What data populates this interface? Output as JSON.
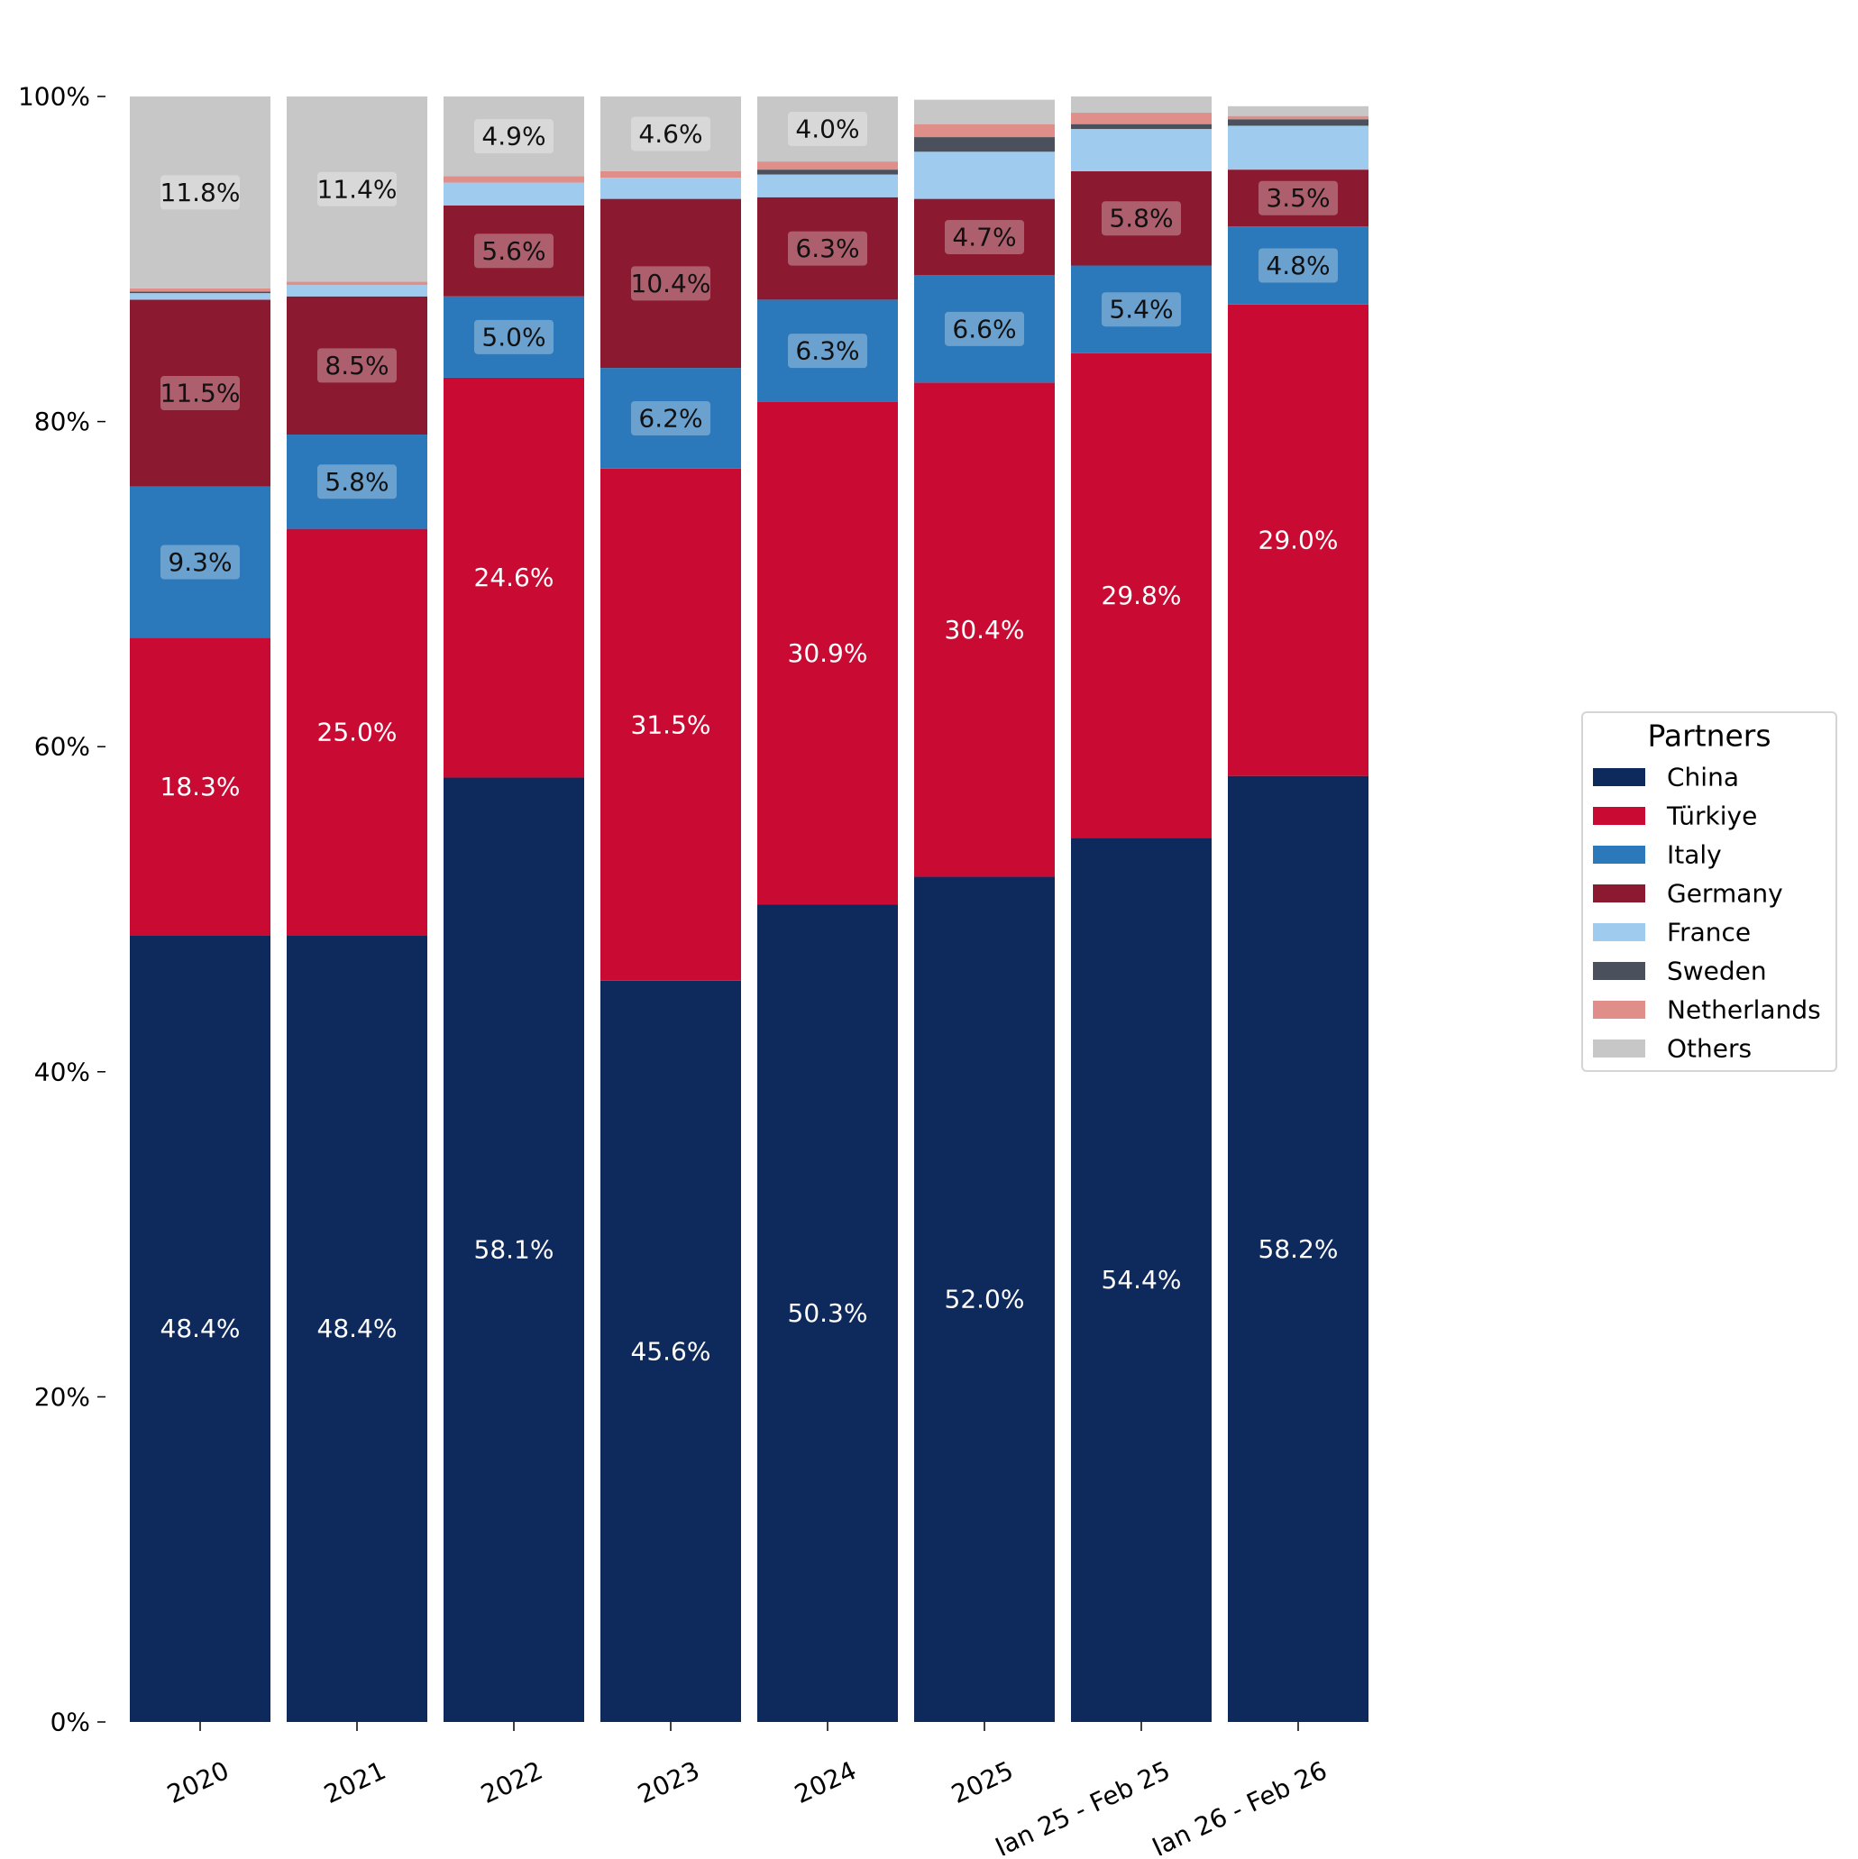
{
  "chart_data": {
    "type": "bar",
    "stacked": true,
    "normalized": true,
    "categories": [
      "2020",
      "2021",
      "2022",
      "2023",
      "2024",
      "2025",
      "Jan 25 - Feb 25",
      "Jan 26 - Feb 26"
    ],
    "ylim": [
      0,
      100
    ],
    "yticks": [
      0,
      20,
      40,
      60,
      80,
      100
    ],
    "ytick_labels": [
      "0%",
      "20%",
      "40%",
      "60%",
      "80%",
      "100%"
    ],
    "grid": false,
    "legend": {
      "title": "Partners",
      "position": "right"
    },
    "series": [
      {
        "name": "China",
        "color": "#0e2a5c",
        "label_color": "#ffffff",
        "label_box": false,
        "values": [
          48.4,
          48.4,
          58.1,
          45.6,
          50.3,
          52.0,
          54.4,
          58.2
        ],
        "labels": [
          "48.4%",
          "48.4%",
          "58.1%",
          "45.6%",
          "50.3%",
          "52.0%",
          "54.4%",
          "58.2%"
        ]
      },
      {
        "name": "Türkiye",
        "color": "#c90b34",
        "label_color": "#ffffff",
        "label_box": false,
        "values": [
          18.3,
          25.0,
          24.6,
          31.5,
          30.9,
          30.4,
          29.8,
          29.0
        ],
        "labels": [
          "18.3%",
          "25.0%",
          "24.6%",
          "31.5%",
          "30.9%",
          "30.4%",
          "29.8%",
          "29.0%"
        ]
      },
      {
        "name": "Italy",
        "color": "#2b79ba",
        "label_color": "#111111",
        "label_box": true,
        "values": [
          9.3,
          5.8,
          5.0,
          6.2,
          6.3,
          6.6,
          5.4,
          4.8
        ],
        "labels": [
          "9.3%",
          "5.8%",
          "5.0%",
          "6.2%",
          "6.3%",
          "6.6%",
          "5.4%",
          "4.8%"
        ]
      },
      {
        "name": "Germany",
        "color": "#8b1a30",
        "label_color": "#111111",
        "label_box": true,
        "values": [
          11.5,
          8.5,
          5.6,
          10.4,
          6.3,
          4.7,
          5.8,
          3.5
        ],
        "labels": [
          "11.5%",
          "8.5%",
          "5.6%",
          "10.4%",
          "6.3%",
          "4.7%",
          "5.8%",
          "3.5%"
        ]
      },
      {
        "name": "France",
        "color": "#9fcbee",
        "label_color": "#111111",
        "label_box": true,
        "values": [
          0.4,
          0.7,
          1.4,
          1.3,
          1.4,
          2.9,
          2.6,
          2.7
        ],
        "labels": [
          "",
          "",
          "",
          "",
          "",
          "",
          "",
          ""
        ]
      },
      {
        "name": "Sweden",
        "color": "#4a515c",
        "label_color": "#111111",
        "label_box": true,
        "values": [
          0.1,
          0.0,
          0.0,
          0.0,
          0.3,
          0.9,
          0.3,
          0.4
        ],
        "labels": [
          "",
          "",
          "",
          "",
          "",
          "",
          "",
          ""
        ]
      },
      {
        "name": "Netherlands",
        "color": "#e08e8a",
        "label_color": "#111111",
        "label_box": true,
        "values": [
          0.2,
          0.2,
          0.4,
          0.4,
          0.5,
          0.8,
          0.7,
          0.2
        ],
        "labels": [
          "",
          "",
          "",
          "",
          "",
          "",
          "",
          ""
        ]
      },
      {
        "name": "Others",
        "color": "#c7c7c7",
        "label_color": "#111111",
        "label_box": true,
        "values": [
          11.8,
          11.4,
          4.9,
          4.6,
          4.0,
          1.5,
          1.0,
          0.6
        ],
        "labels": [
          "11.8%",
          "11.4%",
          "4.9%",
          "4.6%",
          "4.0%",
          "",
          "",
          ""
        ]
      }
    ]
  }
}
